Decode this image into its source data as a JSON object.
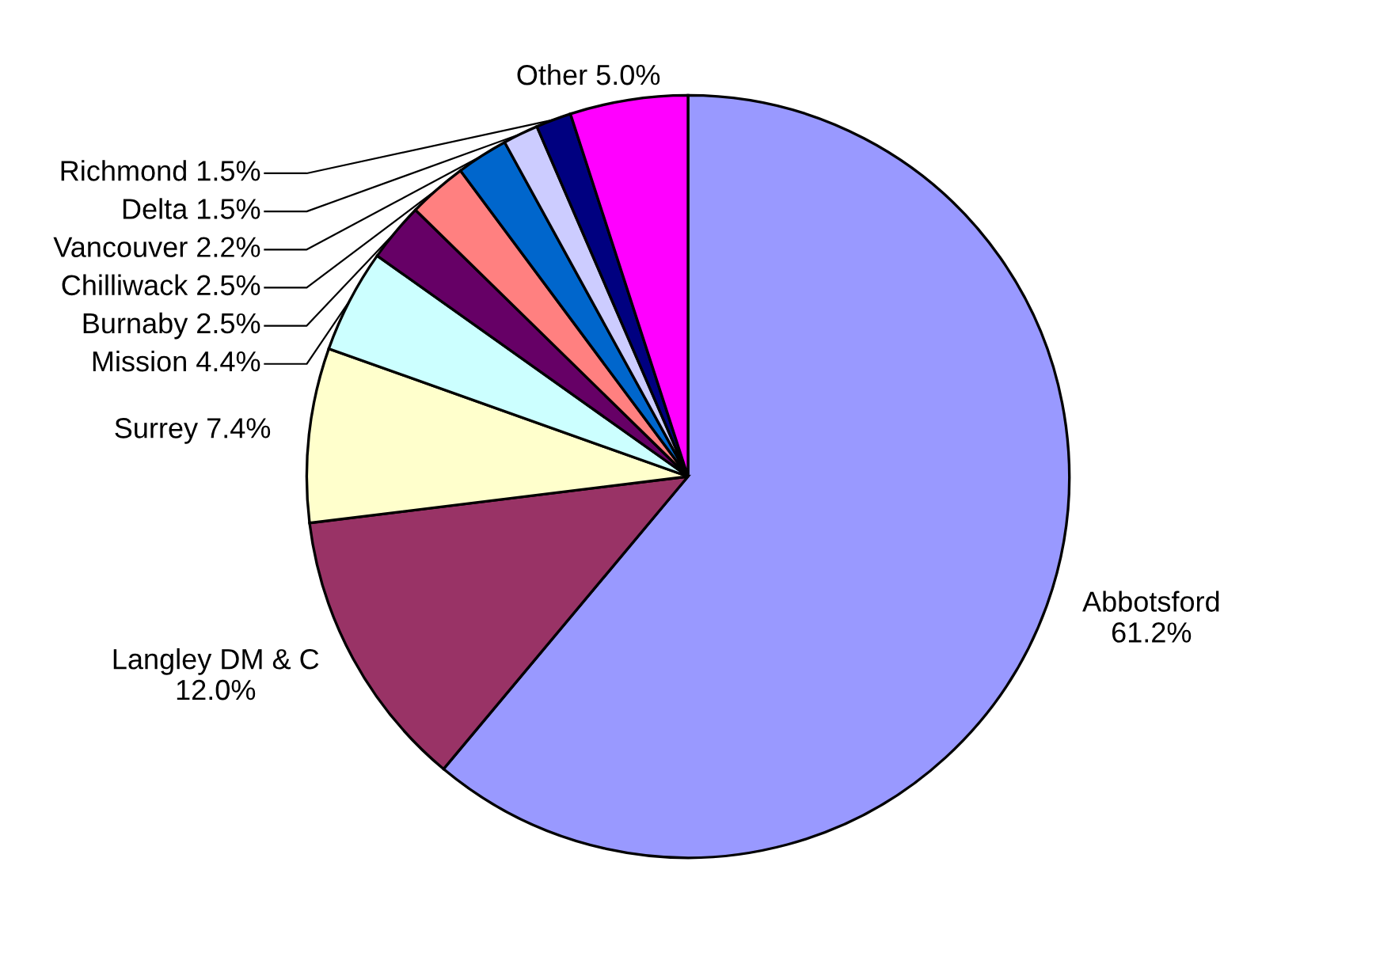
{
  "chart_data": {
    "type": "pie",
    "categories": [
      "Abbotsford",
      "Langley DM & C",
      "Surrey",
      "Mission",
      "Burnaby",
      "Chilliwack",
      "Vancouver",
      "Delta",
      "Richmond",
      "Other"
    ],
    "values": [
      61.2,
      12.0,
      7.4,
      4.4,
      2.5,
      2.5,
      2.2,
      1.5,
      1.5,
      5.0
    ],
    "value_labels": [
      "61.2%",
      "12.0%",
      "7.4%",
      "4.4%",
      "2.5%",
      "2.5%",
      "2.2%",
      "1.5%",
      "1.5%",
      "5.0%"
    ],
    "colors": [
      "#9999ff",
      "#993366",
      "#ffffcc",
      "#ccffff",
      "#660066",
      "#ff8080",
      "#0066cc",
      "#ccccff",
      "#000080",
      "#ff00ff"
    ],
    "legend": false
  }
}
